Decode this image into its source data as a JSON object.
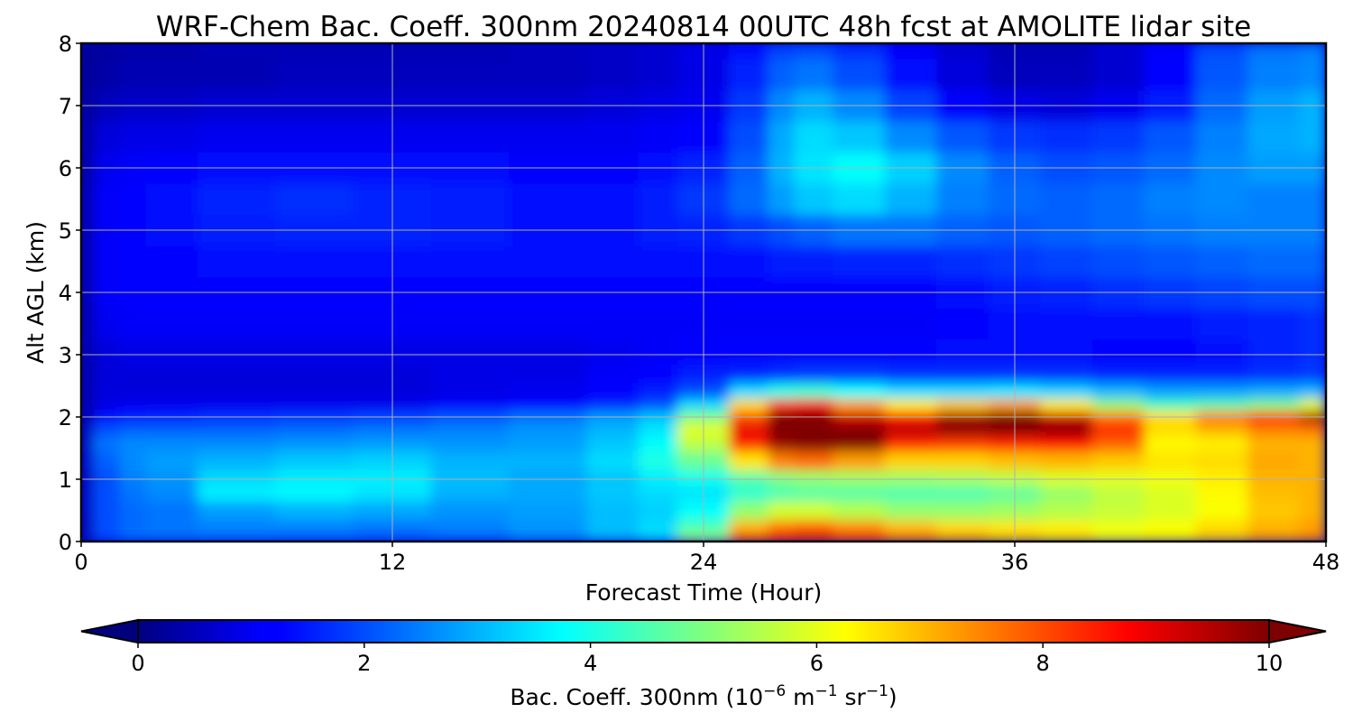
{
  "chart_data": {
    "type": "heatmap",
    "title": "WRF-Chem Bac. Coeff. 300nm  20240814 00UTC 48h fcst at AMOLITE lidar site",
    "xlabel": "Forecast Time (Hour)",
    "ylabel": "Alt AGL (km)",
    "xlim": [
      0,
      48
    ],
    "ylim": [
      0,
      8
    ],
    "x_ticks": [
      "0",
      "12",
      "24",
      "36",
      "48"
    ],
    "y_ticks": [
      "0",
      "1",
      "2",
      "3",
      "4",
      "5",
      "6",
      "7",
      "8"
    ],
    "grid": true,
    "colormap": "jet",
    "colorbar": {
      "orientation": "horizontal",
      "position": "bottom",
      "range": [
        0,
        10
      ],
      "extend": "both",
      "ticks": [
        "0",
        "2",
        "4",
        "6",
        "8",
        "10"
      ],
      "label_main": "Bac. Coeff. 300nm  (10",
      "label_exp1": "−6",
      "label_mid1": " m",
      "label_exp2": "−1",
      "label_mid2": " sr",
      "label_exp3": "−1",
      "label_end": ")"
    },
    "x": [
      0,
      1,
      2,
      3,
      6,
      9,
      12,
      15,
      18,
      21,
      22,
      24,
      26,
      27,
      28,
      30,
      32,
      34,
      36,
      38,
      40,
      42,
      44,
      46,
      48
    ],
    "y": [
      0,
      0.05,
      0.2,
      0.5,
      0.8,
      1.0,
      1.3,
      1.6,
      1.8,
      2.0,
      2.2,
      2.4,
      2.7,
      3.0,
      3.5,
      4.0,
      4.5,
      5.0,
      5.5,
      6.0,
      6.5,
      7.0,
      7.5,
      8.0
    ],
    "values": [
      [
        0.5,
        1.5,
        1.6,
        1.6,
        1.7,
        1.6,
        1.6,
        1.8,
        2.0,
        2.3,
        2.6,
        5.5,
        8.0,
        8.4,
        8.2,
        7.6,
        7.0,
        6.8,
        6.6,
        6.4,
        6.0,
        6.2,
        6.6,
        7.4,
        7.5
      ],
      [
        0.5,
        2.0,
        2.4,
        2.4,
        2.4,
        2.3,
        2.2,
        2.3,
        2.6,
        3.0,
        3.4,
        5.2,
        8.2,
        8.8,
        9.0,
        8.6,
        7.8,
        7.2,
        6.8,
        6.6,
        6.2,
        6.4,
        6.8,
        7.2,
        7.4
      ],
      [
        0.5,
        2.0,
        2.3,
        2.4,
        2.5,
        2.5,
        2.4,
        2.5,
        2.7,
        3.1,
        3.4,
        4.5,
        7.0,
        7.6,
        7.8,
        7.4,
        6.9,
        6.6,
        6.5,
        6.4,
        6.1,
        6.2,
        6.6,
        7.0,
        7.2
      ],
      [
        0.6,
        2.0,
        2.3,
        2.4,
        2.8,
        3.0,
        2.9,
        2.7,
        2.8,
        3.1,
        3.3,
        3.8,
        5.2,
        5.8,
        5.8,
        5.5,
        5.2,
        5.2,
        5.3,
        5.5,
        5.7,
        5.9,
        6.2,
        6.8,
        7.0
      ],
      [
        0.6,
        2.0,
        2.4,
        2.6,
        3.6,
        3.7,
        3.5,
        3.0,
        2.9,
        3.2,
        3.4,
        3.5,
        4.2,
        4.5,
        4.6,
        4.6,
        4.5,
        4.5,
        4.7,
        5.2,
        5.6,
        5.9,
        6.3,
        6.9,
        7.0
      ],
      [
        0.6,
        2.0,
        2.5,
        2.7,
        3.4,
        3.6,
        3.6,
        3.1,
        2.9,
        3.2,
        3.6,
        3.9,
        4.6,
        5.0,
        5.2,
        5.3,
        5.3,
        5.4,
        5.6,
        5.9,
        6.0,
        6.1,
        6.4,
        7.0,
        7.0
      ],
      [
        0.6,
        2.2,
        2.6,
        2.8,
        3.0,
        3.2,
        3.3,
        3.0,
        3.0,
        3.4,
        4.0,
        4.8,
        6.5,
        7.5,
        7.7,
        7.2,
        6.7,
        6.7,
        6.9,
        7.0,
        6.8,
        6.5,
        6.6,
        7.1,
        7.0
      ],
      [
        0.6,
        2.4,
        2.6,
        2.6,
        2.6,
        2.7,
        2.8,
        2.7,
        2.8,
        3.2,
        3.8,
        5.6,
        8.4,
        9.8,
        10.3,
        10.0,
        8.4,
        8.2,
        8.4,
        8.6,
        7.8,
        6.3,
        6.4,
        7.0,
        7.0
      ],
      [
        0.5,
        2.0,
        2.2,
        2.2,
        2.2,
        2.3,
        2.4,
        2.5,
        2.7,
        3.0,
        3.5,
        6.0,
        9.0,
        10.4,
        10.6,
        10.2,
        9.5,
        10.2,
        10.3,
        10.0,
        8.5,
        6.6,
        7.0,
        7.5,
        7.6
      ],
      [
        0.4,
        1.4,
        1.5,
        1.6,
        1.7,
        1.8,
        1.9,
        2.1,
        2.4,
        2.8,
        3.2,
        5.0,
        8.0,
        10.2,
        10.4,
        9.2,
        8.6,
        9.6,
        10.0,
        9.2,
        7.6,
        6.6,
        7.6,
        8.4,
        9.6
      ],
      [
        0.4,
        1.0,
        1.1,
        1.1,
        1.1,
        1.1,
        1.1,
        1.2,
        1.3,
        1.6,
        2.0,
        3.4,
        6.6,
        8.2,
        8.6,
        7.2,
        6.4,
        6.8,
        7.2,
        6.4,
        5.2,
        4.4,
        4.6,
        5.0,
        6.0
      ],
      [
        0.4,
        0.9,
        0.9,
        0.9,
        0.9,
        0.9,
        0.9,
        1.0,
        1.1,
        1.3,
        1.5,
        2.0,
        3.4,
        4.0,
        4.2,
        3.8,
        3.4,
        3.4,
        3.5,
        3.3,
        3.0,
        2.8,
        2.8,
        2.9,
        3.0
      ],
      [
        0.4,
        0.9,
        0.9,
        0.9,
        0.9,
        0.9,
        0.9,
        1.0,
        1.0,
        1.2,
        1.3,
        1.5,
        1.6,
        1.7,
        1.8,
        1.8,
        1.7,
        1.7,
        1.7,
        1.7,
        1.6,
        1.6,
        1.6,
        1.7,
        1.8
      ],
      [
        0.4,
        0.9,
        1.0,
        1.0,
        1.0,
        1.0,
        1.0,
        1.0,
        1.0,
        1.1,
        1.2,
        1.3,
        1.3,
        1.3,
        1.3,
        1.3,
        1.3,
        1.4,
        1.4,
        1.4,
        1.3,
        1.3,
        1.4,
        1.6,
        1.7
      ],
      [
        0.4,
        1.1,
        1.2,
        1.2,
        1.2,
        1.2,
        1.2,
        1.2,
        1.2,
        1.2,
        1.2,
        1.2,
        1.2,
        1.2,
        1.2,
        1.2,
        1.2,
        1.3,
        1.4,
        1.4,
        1.4,
        1.4,
        1.5,
        1.6,
        1.7
      ],
      [
        0.4,
        1.2,
        1.3,
        1.3,
        1.3,
        1.3,
        1.3,
        1.3,
        1.3,
        1.3,
        1.3,
        1.3,
        1.3,
        1.3,
        1.3,
        1.3,
        1.3,
        1.4,
        1.5,
        1.6,
        1.7,
        1.8,
        1.9,
        2.0,
        2.0
      ],
      [
        0.4,
        1.2,
        1.3,
        1.3,
        1.4,
        1.4,
        1.4,
        1.4,
        1.4,
        1.4,
        1.4,
        1.4,
        1.4,
        1.5,
        1.5,
        1.6,
        1.6,
        1.7,
        1.8,
        1.9,
        2.0,
        2.1,
        2.2,
        2.3,
        2.3
      ],
      [
        0.4,
        1.2,
        1.3,
        1.4,
        1.5,
        1.6,
        1.6,
        1.5,
        1.4,
        1.4,
        1.5,
        1.6,
        1.8,
        2.0,
        2.2,
        2.4,
        2.4,
        2.2,
        2.1,
        2.2,
        2.3,
        2.4,
        2.5,
        2.5,
        2.5
      ],
      [
        0.4,
        1.2,
        1.3,
        1.4,
        1.6,
        1.7,
        1.6,
        1.5,
        1.4,
        1.4,
        1.5,
        1.8,
        2.3,
        2.8,
        3.2,
        3.4,
        3.0,
        2.5,
        2.3,
        2.2,
        2.3,
        2.5,
        2.6,
        2.5,
        2.5
      ],
      [
        0.3,
        1.1,
        1.2,
        1.3,
        1.4,
        1.4,
        1.4,
        1.4,
        1.3,
        1.3,
        1.4,
        1.6,
        2.2,
        3.0,
        3.5,
        3.8,
        3.3,
        2.6,
        2.2,
        2.0,
        2.1,
        2.3,
        2.6,
        2.8,
        2.8
      ],
      [
        0.3,
        0.9,
        1.0,
        1.0,
        1.1,
        1.1,
        1.1,
        1.1,
        1.1,
        1.1,
        1.2,
        1.3,
        2.0,
        2.9,
        3.4,
        3.2,
        2.6,
        2.1,
        1.8,
        1.7,
        1.8,
        2.1,
        2.5,
        2.9,
        3.0
      ],
      [
        0.2,
        0.6,
        0.7,
        0.7,
        0.8,
        0.8,
        0.8,
        0.8,
        0.8,
        0.9,
        1.0,
        1.1,
        1.8,
        2.6,
        3.0,
        2.6,
        1.9,
        1.3,
        1.0,
        0.9,
        1.1,
        1.5,
        2.3,
        2.8,
        3.0
      ],
      [
        0.2,
        0.4,
        0.5,
        0.5,
        0.5,
        0.6,
        0.6,
        0.6,
        0.6,
        0.7,
        0.8,
        1.0,
        1.6,
        2.2,
        2.4,
        2.0,
        1.4,
        0.9,
        0.6,
        0.6,
        0.8,
        1.3,
        2.1,
        2.5,
        2.6
      ],
      [
        0.2,
        0.3,
        0.4,
        0.4,
        0.5,
        0.5,
        0.5,
        0.5,
        0.6,
        0.7,
        0.8,
        1.0,
        1.4,
        1.9,
        2.0,
        1.7,
        1.2,
        0.8,
        0.5,
        0.5,
        0.8,
        1.3,
        2.0,
        2.4,
        2.5
      ]
    ]
  }
}
